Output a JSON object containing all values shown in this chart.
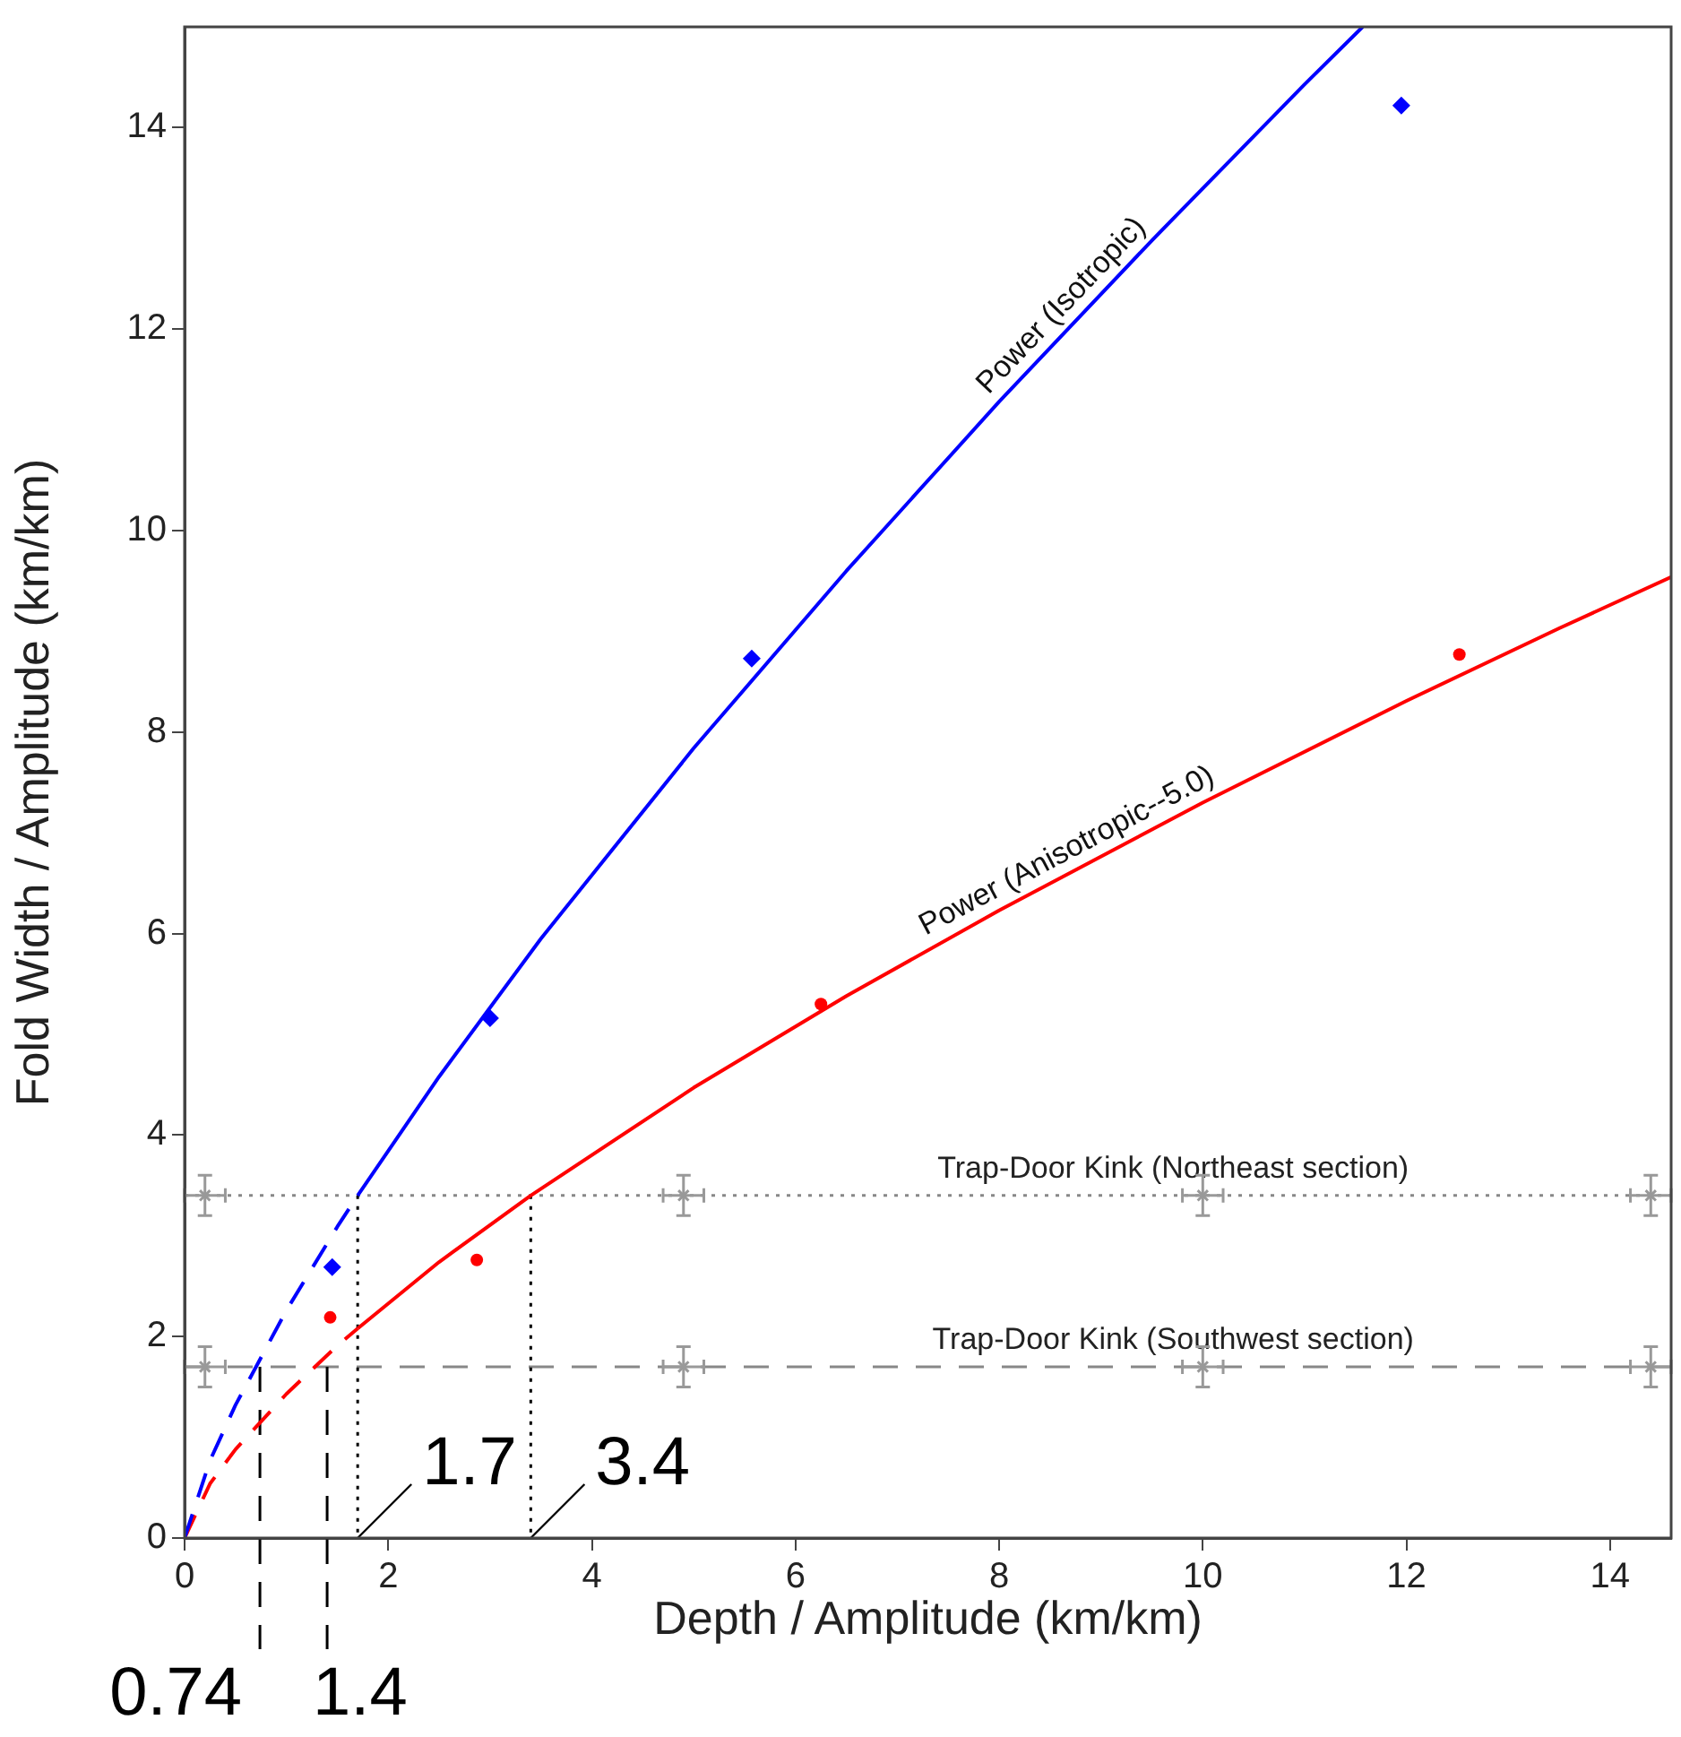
{
  "chart_data": {
    "type": "line",
    "xlabel": "Depth / Amplitude (km/km)",
    "ylabel": "Fold Width / Amplitude (km/km)",
    "xlim": [
      0,
      14.6
    ],
    "ylim": [
      0,
      15
    ],
    "xticks": [
      0,
      2,
      4,
      6,
      8,
      10,
      12,
      14
    ],
    "yticks": [
      0,
      2,
      4,
      6,
      8,
      10,
      12,
      14
    ],
    "grid": false,
    "legend": false,
    "series": [
      {
        "line_style": "dashed",
        "marker": "none",
        "color": "#0000ff",
        "x": [
          0,
          0.25,
          0.5,
          1,
          1.5,
          1.7
        ],
        "values": [
          0,
          0.77,
          1.32,
          2.26,
          3.09,
          3.4
        ]
      },
      {
        "name": "Power (Isotropic)",
        "line_style": "solid",
        "marker": "none",
        "color": "#0000ff",
        "x": [
          1.7,
          2.5,
          3.5,
          5,
          6.5,
          8,
          9.5,
          11,
          11.57
        ],
        "values": [
          3.4,
          4.58,
          5.95,
          7.84,
          9.6,
          11.28,
          12.88,
          14.43,
          15
        ]
      },
      {
        "line_style": "dashed",
        "marker": "none",
        "color": "#ff0000",
        "x": [
          0,
          0.25,
          0.5,
          1,
          1.5,
          1.7
        ],
        "values": [
          0,
          0.54,
          0.88,
          1.43,
          1.91,
          2.08
        ]
      },
      {
        "name": "Power (Anisotropic--5.0)",
        "line_style": "solid",
        "marker": "none",
        "color": "#ff0000",
        "x": [
          1.7,
          2.5,
          3.4,
          5,
          6.5,
          8,
          10,
          12,
          13.5,
          14.6
        ],
        "values": [
          2.08,
          2.74,
          3.4,
          4.47,
          5.38,
          6.23,
          7.3,
          8.31,
          9.03,
          9.54
        ]
      },
      {
        "type": "scatter",
        "marker": "diamond",
        "color": "#0000ff",
        "x": [
          1.45,
          3.0,
          5.57,
          11.95
        ],
        "values": [
          2.69,
          5.16,
          8.73,
          14.22
        ]
      },
      {
        "type": "scatter",
        "marker": "circle",
        "color": "#ff0000",
        "x": [
          1.43,
          2.87,
          6.25,
          12.52
        ],
        "values": [
          2.19,
          2.76,
          5.3,
          8.77
        ]
      },
      {
        "type": "scatter",
        "marker": "cross",
        "color": "#999999",
        "x": [
          0.2,
          4.9,
          10,
          14.4,
          0.2,
          4.9,
          10,
          14.4
        ],
        "values": [
          3.4,
          3.4,
          3.4,
          3.4,
          1.7,
          1.7,
          1.7,
          1.7
        ],
        "errors": [
          0.2,
          0.2,
          0.2,
          0.2,
          0.2,
          0.2,
          0.2,
          0.2
        ],
        "xerrors": [
          0.2,
          0.2,
          0.2,
          0.2,
          0.2,
          0.2,
          0.2,
          0.2
        ]
      }
    ],
    "ref_lines": [
      {
        "axis": "y",
        "value": 3.4,
        "label": "Trap-Door Kink (Northeast section)",
        "line_style": "dotted",
        "color": "#888888"
      },
      {
        "axis": "y",
        "value": 1.7,
        "label": "Trap-Door Kink (Southwest section)",
        "line_style": "dashed",
        "color": "#888888"
      },
      {
        "axis": "x",
        "value": 0.74,
        "label": "0.74",
        "line_style": "dashed",
        "color": "#000000"
      },
      {
        "axis": "x",
        "value": 1.4,
        "label": "1.4",
        "line_style": "dashed",
        "color": "#000000"
      },
      {
        "axis": "x",
        "value": 1.7,
        "label": "1.7",
        "line_style": "dotted",
        "color": "#000000"
      },
      {
        "axis": "x",
        "value": 3.4,
        "label": "3.4",
        "line_style": "dotted",
        "color": "#000000"
      }
    ]
  }
}
